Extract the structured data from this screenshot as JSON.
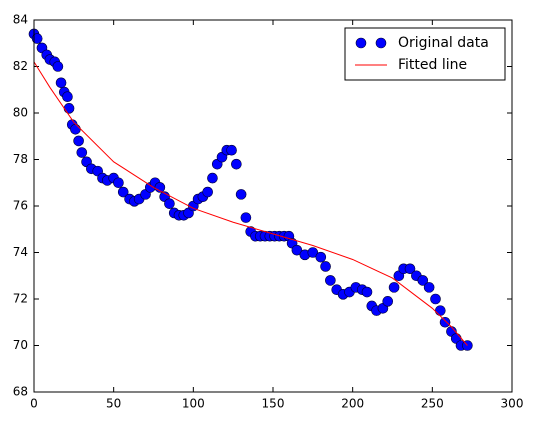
{
  "chart_data": {
    "type": "scatter",
    "series": [
      {
        "name": "Original data",
        "kind": "scatter",
        "color": "#0000ff",
        "x": [
          0,
          2,
          5,
          8,
          10,
          13,
          15,
          17,
          19,
          21,
          22,
          24,
          26,
          28,
          30,
          33,
          36,
          40,
          43,
          46,
          50,
          53,
          56,
          60,
          63,
          66,
          70,
          73,
          76,
          79,
          82,
          85,
          88,
          91,
          94,
          97,
          100,
          103,
          106,
          109,
          112,
          115,
          118,
          121,
          124,
          127,
          130,
          133,
          136,
          139,
          142,
          145,
          148,
          151,
          154,
          157,
          160,
          162,
          165,
          170,
          175,
          180,
          183,
          186,
          190,
          194,
          198,
          202,
          206,
          209,
          212,
          215,
          219,
          222,
          226,
          229,
          232,
          236,
          240,
          244,
          248,
          252,
          255,
          258,
          262,
          265,
          268,
          272
        ],
        "values": [
          83.4,
          83.2,
          82.8,
          82.5,
          82.3,
          82.2,
          82.0,
          81.3,
          80.9,
          80.7,
          80.2,
          79.5,
          79.3,
          78.8,
          78.3,
          77.9,
          77.6,
          77.5,
          77.2,
          77.1,
          77.2,
          77.0,
          76.6,
          76.3,
          76.2,
          76.3,
          76.5,
          76.8,
          77.0,
          76.8,
          76.4,
          76.1,
          75.7,
          75.6,
          75.6,
          75.7,
          76.0,
          76.3,
          76.4,
          76.6,
          77.2,
          77.8,
          78.1,
          78.4,
          78.4,
          77.8,
          76.5,
          75.5,
          74.9,
          74.7,
          74.7,
          74.7,
          74.7,
          74.7,
          74.7,
          74.7,
          74.7,
          74.4,
          74.1,
          73.9,
          74.0,
          73.8,
          73.4,
          72.8,
          72.4,
          72.2,
          72.3,
          72.5,
          72.4,
          72.3,
          71.7,
          71.5,
          71.6,
          71.9,
          72.5,
          73.0,
          73.3,
          73.3,
          73.0,
          72.8,
          72.5,
          72.0,
          71.5,
          71.0,
          70.6,
          70.3,
          70.0,
          70.0
        ]
      },
      {
        "name": "Fitted line",
        "kind": "line",
        "color": "#ff0000",
        "x": [
          0,
          10,
          25,
          50,
          75,
          100,
          125,
          150,
          175,
          200,
          225,
          250,
          262,
          272
        ],
        "values": [
          82.2,
          81.1,
          79.6,
          77.9,
          76.8,
          75.9,
          75.3,
          74.8,
          74.3,
          73.7,
          72.9,
          71.6,
          70.8,
          70.0
        ]
      }
    ],
    "xlim": [
      0,
      300
    ],
    "xticks": [
      0,
      50,
      100,
      150,
      200,
      250,
      300
    ],
    "ylim": [
      68,
      84
    ],
    "yticks": [
      68,
      70,
      72,
      74,
      76,
      78,
      80,
      82,
      84
    ],
    "legend": "upper right"
  }
}
